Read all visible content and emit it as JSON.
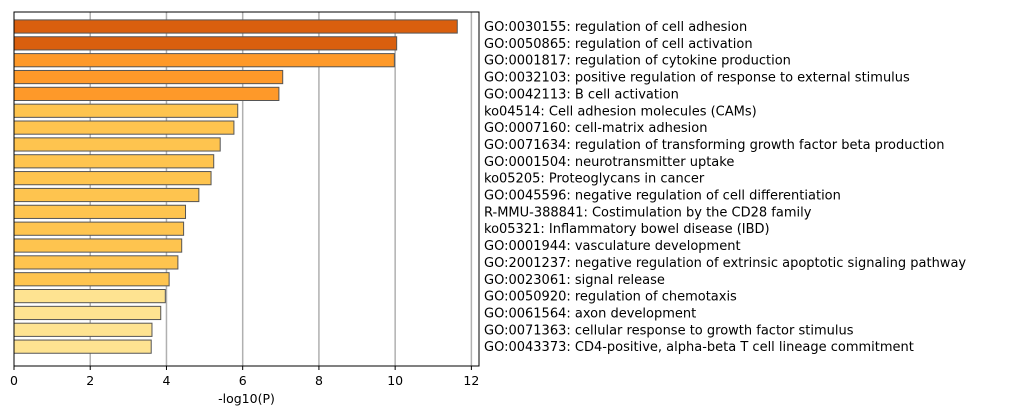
{
  "chart_data": {
    "type": "bar",
    "orientation": "horizontal",
    "title": "",
    "xlabel": "-log10(P)",
    "ylabel": "",
    "xlim": [
      0,
      12.2
    ],
    "xticks": [
      "0",
      "2",
      "4",
      "6",
      "8",
      "10",
      "12"
    ],
    "grid": "vertical",
    "legend": "none",
    "categories": [
      "GO:0030155: regulation of cell adhesion",
      "GO:0050865: regulation of cell activation",
      "GO:0001817: regulation of cytokine production",
      "GO:0032103: positive regulation of response to external stimulus",
      "GO:0042113: B cell activation",
      "ko04514: Cell adhesion molecules (CAMs)",
      "GO:0007160: cell-matrix adhesion",
      "GO:0071634: regulation of transforming growth factor beta production",
      "GO:0001504: neurotransmitter uptake",
      "ko05205: Proteoglycans in cancer",
      "GO:0045596: negative regulation of cell differentiation",
      "R-MMU-388841: Costimulation by the CD28 family",
      "ko05321: Inflammatory bowel disease (IBD)",
      "GO:0001944: vasculature development",
      "GO:2001237: negative regulation of extrinsic apoptotic signaling pathway",
      "GO:0023061: signal release",
      "GO:0050920: regulation of chemotaxis",
      "GO:0061564: axon development",
      "GO:0071363: cellular response to growth factor stimulus",
      "GO:0043373: CD4-positive, alpha-beta T cell lineage commitment"
    ],
    "values": [
      11.63,
      10.04,
      9.98,
      7.05,
      6.95,
      5.87,
      5.77,
      5.41,
      5.24,
      5.17,
      4.85,
      4.5,
      4.45,
      4.4,
      4.3,
      4.07,
      3.97,
      3.85,
      3.62,
      3.6
    ],
    "colors": [
      "#d95f0e",
      "#d95f0e",
      "#fe9929",
      "#fe9929",
      "#fe9929",
      "#fec44f",
      "#fec44f",
      "#fec44f",
      "#fec44f",
      "#fec44f",
      "#fec44f",
      "#fec44f",
      "#fec44f",
      "#fec44f",
      "#fec44f",
      "#fec44f",
      "#fee391",
      "#fee391",
      "#fee391",
      "#fee391"
    ],
    "bar_edge_color": "#555555"
  }
}
